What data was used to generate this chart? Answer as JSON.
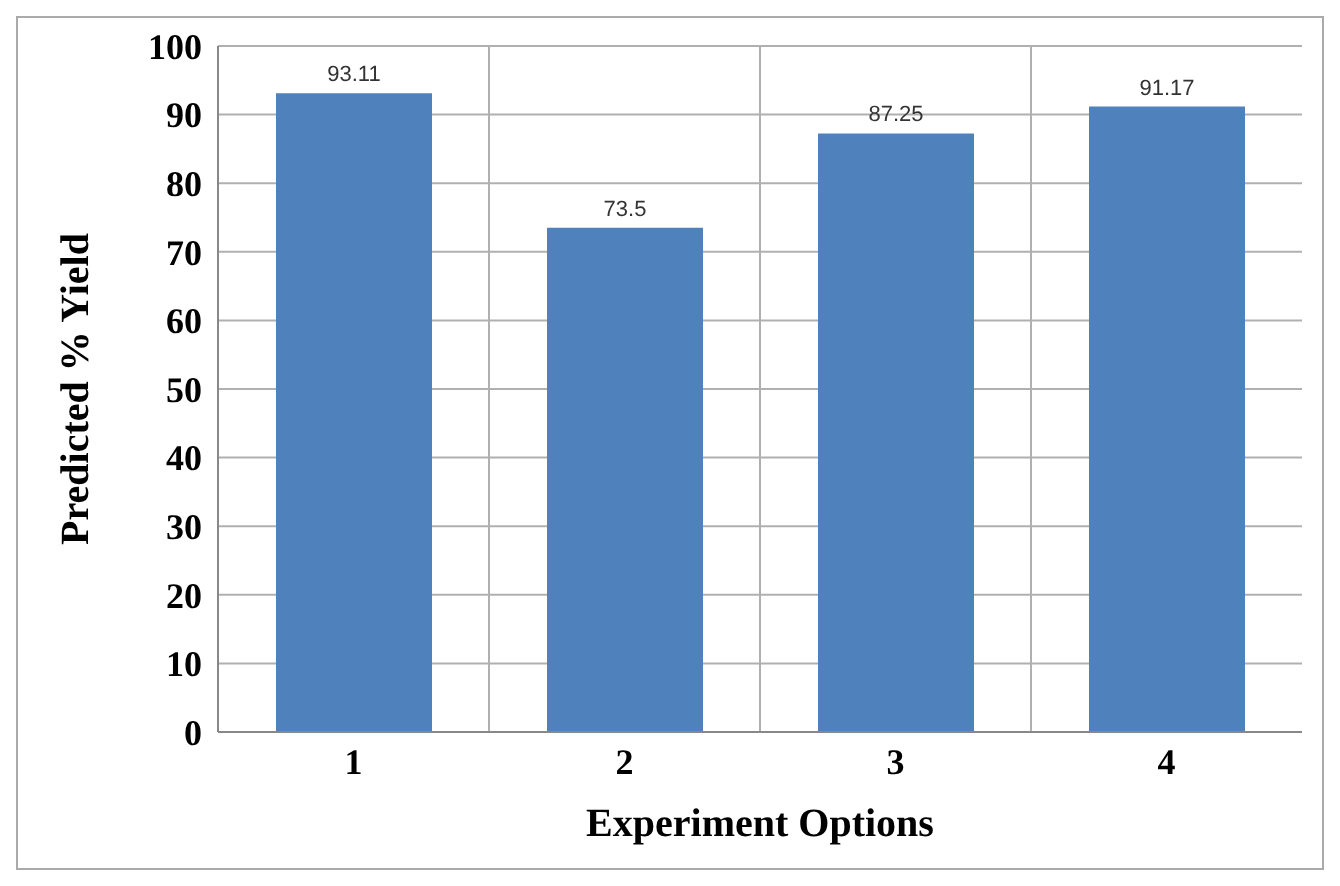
{
  "chart_data": {
    "type": "bar",
    "xlabel": "Experiment Options",
    "ylabel": "Predicted % Yield",
    "categories": [
      "1",
      "2",
      "3",
      "4"
    ],
    "values": [
      93.11,
      73.5,
      87.25,
      91.17
    ],
    "color": "#4f81bd",
    "ylim": [
      0,
      100
    ],
    "yticks": [
      0,
      10,
      20,
      30,
      40,
      50,
      60,
      70,
      80,
      90,
      100
    ],
    "grid": true,
    "data_labels": true
  }
}
